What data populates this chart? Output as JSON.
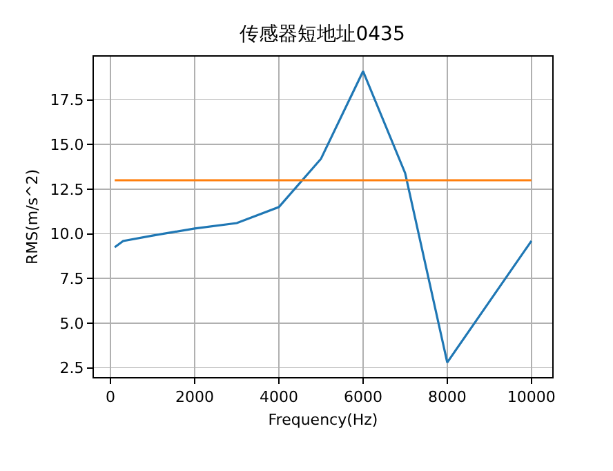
{
  "chart_data": {
    "type": "line",
    "title": "传感器短地址0435",
    "xlabel": "Frequency(Hz)",
    "ylabel": "RMS(m/s^2)",
    "x": [
      100,
      300,
      1000,
      2000,
      3000,
      4000,
      5000,
      6000,
      7000,
      8000,
      9000,
      10000
    ],
    "series": [
      {
        "color": "#1f77b4",
        "values": [
          9.25,
          9.6,
          9.9,
          10.3,
          10.6,
          11.5,
          14.2,
          19.1,
          13.4,
          2.8,
          6.2,
          9.6
        ]
      },
      {
        "color": "#ff7f0e",
        "x": [
          100,
          10000
        ],
        "values": [
          13.0,
          13.0
        ]
      }
    ],
    "xlim": [
      -395,
      10495
    ],
    "ylim": [
      1.98,
      19.92
    ],
    "xticks": [
      0,
      2000,
      4000,
      6000,
      8000,
      10000
    ],
    "yticks": [
      {
        "value": 2.5,
        "label": "2.5"
      },
      {
        "value": 5,
        "label": "5.0"
      },
      {
        "value": 7.5,
        "label": "7.5"
      },
      {
        "value": 10,
        "label": "10.0"
      },
      {
        "value": 12.5,
        "label": "12.5"
      },
      {
        "value": 15,
        "label": "15.0"
      },
      {
        "value": 17.5,
        "label": "17.5"
      }
    ],
    "grid": true,
    "marker": "none",
    "line_style": "solid"
  }
}
